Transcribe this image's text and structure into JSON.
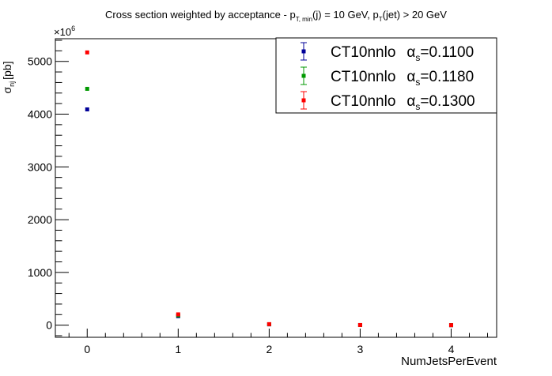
{
  "chart_data": {
    "type": "scatter",
    "title": {
      "main": "Cross section weighted by acceptance - p",
      "sub1": "T, min",
      "mid": "(j) = 10 GeV, p",
      "sub2": "T",
      "end": "(jet) > 20 GeV"
    },
    "xlabel": "NumJetsPerEvent",
    "ylabel": {
      "main": "σ",
      "sub": "nj",
      "unit": "[pb]"
    },
    "y_multiplier": {
      "base": "×10",
      "exp": "6"
    },
    "xlim": [
      -0.35,
      4.5
    ],
    "ylim": [
      -230,
      5430
    ],
    "x_ticks": [
      0,
      1,
      2,
      3,
      4
    ],
    "y_ticks": [
      0,
      1000,
      2000,
      3000,
      4000,
      5000
    ],
    "grid": false,
    "legend_position": "top-right",
    "series": [
      {
        "name": "CT10nnlo",
        "alpha_label": "α",
        "alpha_sub": "s",
        "alpha_value": "=0.1100",
        "color": "#000099",
        "points": [
          [
            0,
            4090
          ],
          [
            1,
            170
          ],
          [
            2,
            15
          ],
          [
            3,
            2
          ],
          [
            4,
            0
          ]
        ]
      },
      {
        "name": "CT10nnlo",
        "alpha_label": "α",
        "alpha_sub": "s",
        "alpha_value": "=0.1180",
        "color": "#009900",
        "points": [
          [
            0,
            4480
          ],
          [
            1,
            185
          ],
          [
            2,
            17
          ],
          [
            3,
            2
          ],
          [
            4,
            0
          ]
        ]
      },
      {
        "name": "CT10nnlo",
        "alpha_label": "α",
        "alpha_sub": "s",
        "alpha_value": "=0.1300",
        "color": "#ff0000",
        "points": [
          [
            0,
            5170
          ],
          [
            1,
            205
          ],
          [
            2,
            19
          ],
          [
            3,
            3
          ],
          [
            4,
            0
          ]
        ]
      }
    ]
  }
}
